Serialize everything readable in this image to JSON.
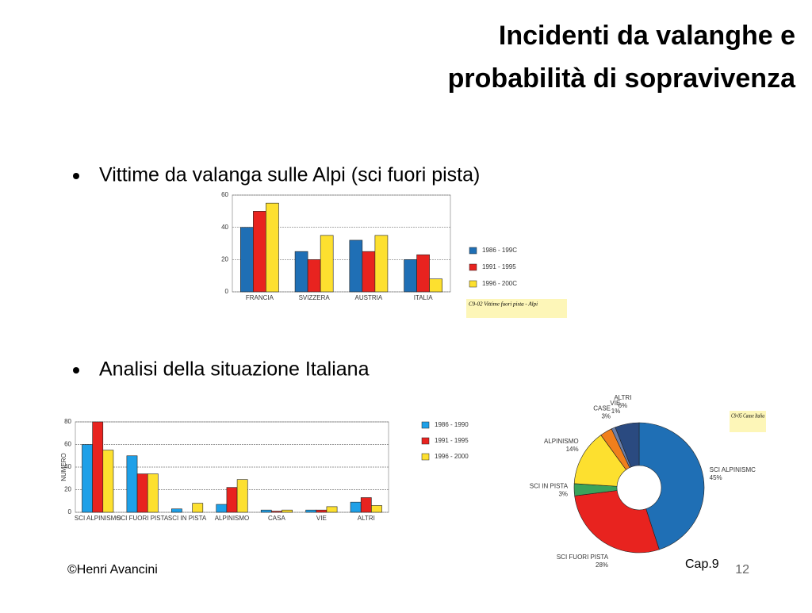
{
  "title": [
    "Incidenti da valanghe e",
    "probabilità di sopravivenza"
  ],
  "bullets": [
    "Vittime da valanga sulle Alpi (sci fuori pista)",
    "Analisi della situazione Italiana"
  ],
  "charts": [
    {
      "type": "bar",
      "categories": [
        "FRANCIA",
        "SVIZZERA",
        "AUSTRIA",
        "ITALIA"
      ],
      "series": [
        {
          "name": "1986 - 199C",
          "color": "#1f6fb5",
          "values": [
            40,
            25,
            32,
            20
          ]
        },
        {
          "name": "1991 - 1995",
          "color": "#e8231f",
          "values": [
            50,
            20,
            25,
            23
          ]
        },
        {
          "name": "1996 - 200C",
          "color": "#fde02f",
          "values": [
            55,
            35,
            35,
            8
          ]
        }
      ],
      "ylim": [
        0,
        60
      ],
      "yticks": [
        0,
        20,
        40,
        60
      ],
      "grid": true,
      "caption": "C9-02 Vittime fuori pista - Alpi"
    },
    {
      "type": "bar",
      "categories": [
        "SCI ALPINISMO",
        "SCI FUORI PISTA",
        "SCI IN PISTA",
        "ALPINISMO",
        "CASA",
        "VIE",
        "ALTRI"
      ],
      "y_label": "NUMERO",
      "series": [
        {
          "name": "1986 - 1990",
          "color": "#1ea0e8",
          "values": [
            60,
            50,
            3,
            7,
            2,
            2,
            9
          ]
        },
        {
          "name": "1991 - 1995",
          "color": "#e8231f",
          "values": [
            80,
            34,
            0,
            22,
            1,
            2,
            13
          ]
        },
        {
          "name": "1996 - 2000",
          "color": "#fde02f",
          "values": [
            55,
            34,
            8,
            29,
            2,
            5,
            6
          ]
        }
      ],
      "ylim": [
        0,
        80
      ],
      "yticks": [
        0,
        20,
        40,
        60,
        80
      ],
      "grid": true
    },
    {
      "type": "pie",
      "categories": [
        "SCI ALPINISMC",
        "SCI FUORI PISTA",
        "SCI IN PISTA",
        "ALPINISMO",
        "CASE",
        "VIE",
        "ALTRI"
      ],
      "values": [
        45,
        28,
        3,
        14,
        3,
        1,
        6
      ],
      "value_labels": [
        "45%",
        "28%",
        "3%",
        "14%",
        "3%",
        "1%",
        "6%"
      ],
      "colors": [
        "#1f6fb5",
        "#e8231f",
        "#3aa35b",
        "#fde02f",
        "#f07f1c",
        "#6c7fa8",
        "#2a4a80"
      ],
      "caption": "C9-05 Cause Italia"
    }
  ],
  "footer": {
    "author": "©Henri Avancini",
    "chapter": "Cap.9",
    "page": "12"
  }
}
